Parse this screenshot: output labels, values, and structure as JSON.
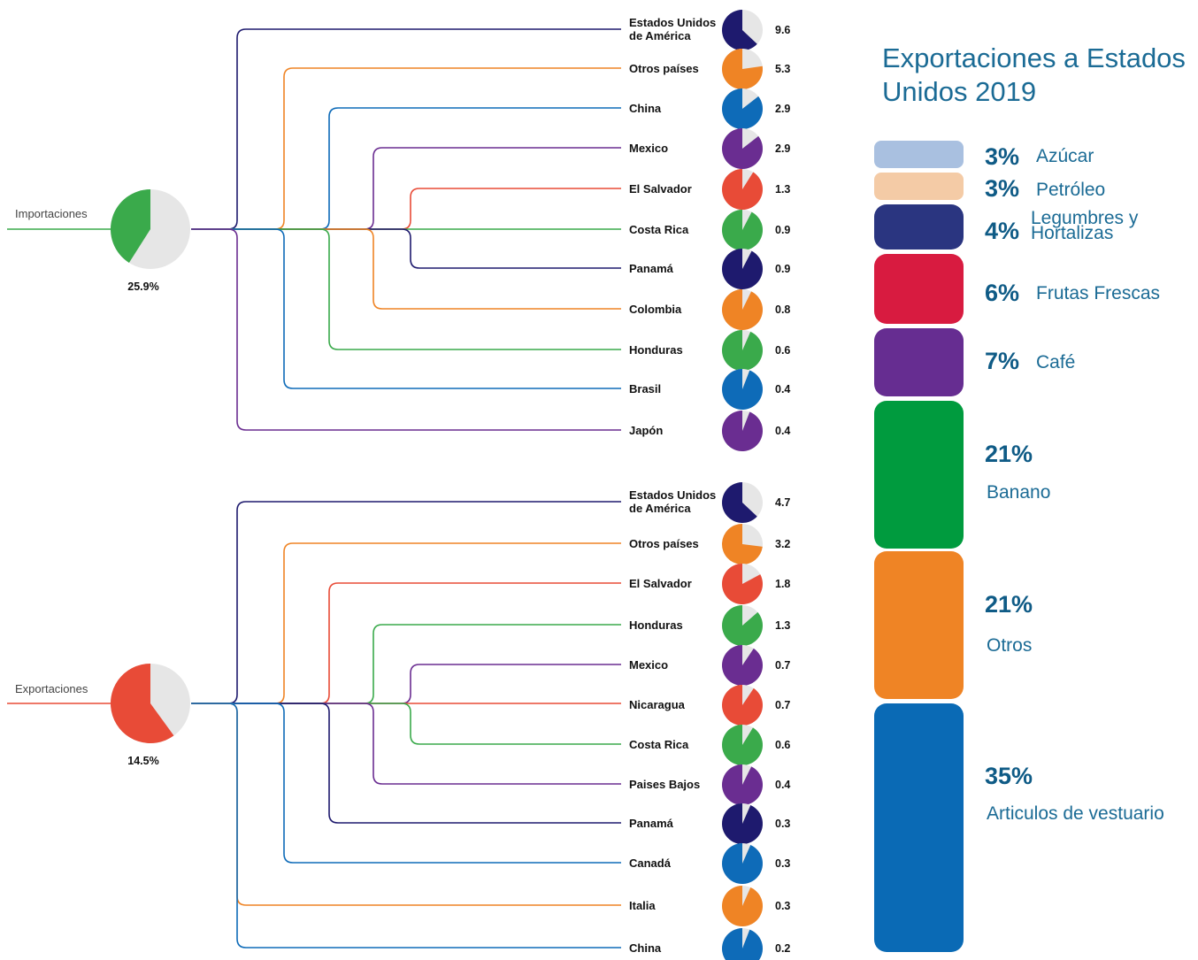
{
  "chart_data": [
    {
      "type": "tree-pie",
      "label": "Importaciones",
      "total": "25.9%",
      "main_fraction": 0.41,
      "main_color": "#3aaa4b",
      "items": [
        {
          "country": "Estados Unidos\nde América",
          "value": "9.6",
          "color": "#1e1a6e"
        },
        {
          "country": "Otros países",
          "value": "5.3",
          "color": "#ef8425"
        },
        {
          "country": "China",
          "value": "2.9",
          "color": "#0e6bb8"
        },
        {
          "country": "Mexico",
          "value": "2.9",
          "color": "#6a2d91"
        },
        {
          "country": "El Salvador",
          "value": "1.3",
          "color": "#e84b37"
        },
        {
          "country": "Costa Rica",
          "value": "0.9",
          "color": "#3aaa4b"
        },
        {
          "country": "Panamá",
          "value": "0.9",
          "color": "#1e1a6e"
        },
        {
          "country": "Colombia",
          "value": "0.8",
          "color": "#ef8425"
        },
        {
          "country": "Honduras",
          "value": "0.6",
          "color": "#3aaa4b"
        },
        {
          "country": "Brasil",
          "value": "0.4",
          "color": "#0e6bb8"
        },
        {
          "country": "Japón",
          "value": "0.4",
          "color": "#6a2d91"
        }
      ]
    },
    {
      "type": "tree-pie",
      "label": "Exportaciones",
      "total": "14.5%",
      "main_fraction": 0.6,
      "main_color": "#e84b37",
      "items": [
        {
          "country": "Estados Unidos\nde América",
          "value": "4.7",
          "color": "#1e1a6e"
        },
        {
          "country": "Otros países",
          "value": "3.2",
          "color": "#ef8425"
        },
        {
          "country": "El Salvador",
          "value": "1.8",
          "color": "#e84b37"
        },
        {
          "country": "Honduras",
          "value": "1.3",
          "color": "#3aaa4b"
        },
        {
          "country": "Mexico",
          "value": "0.7",
          "color": "#6a2d91"
        },
        {
          "country": "Nicaragua",
          "value": "0.7",
          "color": "#e84b37"
        },
        {
          "country": "Costa Rica",
          "value": "0.6",
          "color": "#3aaa4b"
        },
        {
          "country": "Paises Bajos",
          "value": "0.4",
          "color": "#6a2d91"
        },
        {
          "country": "Panamá",
          "value": "0.3",
          "color": "#1e1a6e"
        },
        {
          "country": "Canadá",
          "value": "0.3",
          "color": "#0e6bb8"
        },
        {
          "country": "Italia",
          "value": "0.3",
          "color": "#ef8425"
        },
        {
          "country": "China",
          "value": "0.2",
          "color": "#0e6bb8"
        }
      ]
    },
    {
      "type": "stacked-bar",
      "title": "Exportaciones a Estados Unidos 2019",
      "segments": [
        {
          "pct": "3%",
          "label": "Azúcar",
          "value": 3,
          "color": "#a9c0e0"
        },
        {
          "pct": "3%",
          "label": "Petróleo",
          "value": 3,
          "color": "#f4cba6"
        },
        {
          "pct": "4%",
          "label": "Legumbres y\nHortalizas",
          "value": 4,
          "color": "#2a3580"
        },
        {
          "pct": "6%",
          "label": "Frutas Frescas",
          "value": 6,
          "color": "#d81b40"
        },
        {
          "pct": "7%",
          "label": "Café",
          "value": 7,
          "color": "#662d91"
        },
        {
          "pct": "21%",
          "label": "Banano",
          "value": 21,
          "color": "#009b3e"
        },
        {
          "pct": "21%",
          "label": "Otros",
          "value": 21,
          "color": "#ef8425"
        },
        {
          "pct": "35%",
          "label": "Articulos de vestuario",
          "value": 35,
          "color": "#0a6ab5"
        }
      ]
    }
  ]
}
